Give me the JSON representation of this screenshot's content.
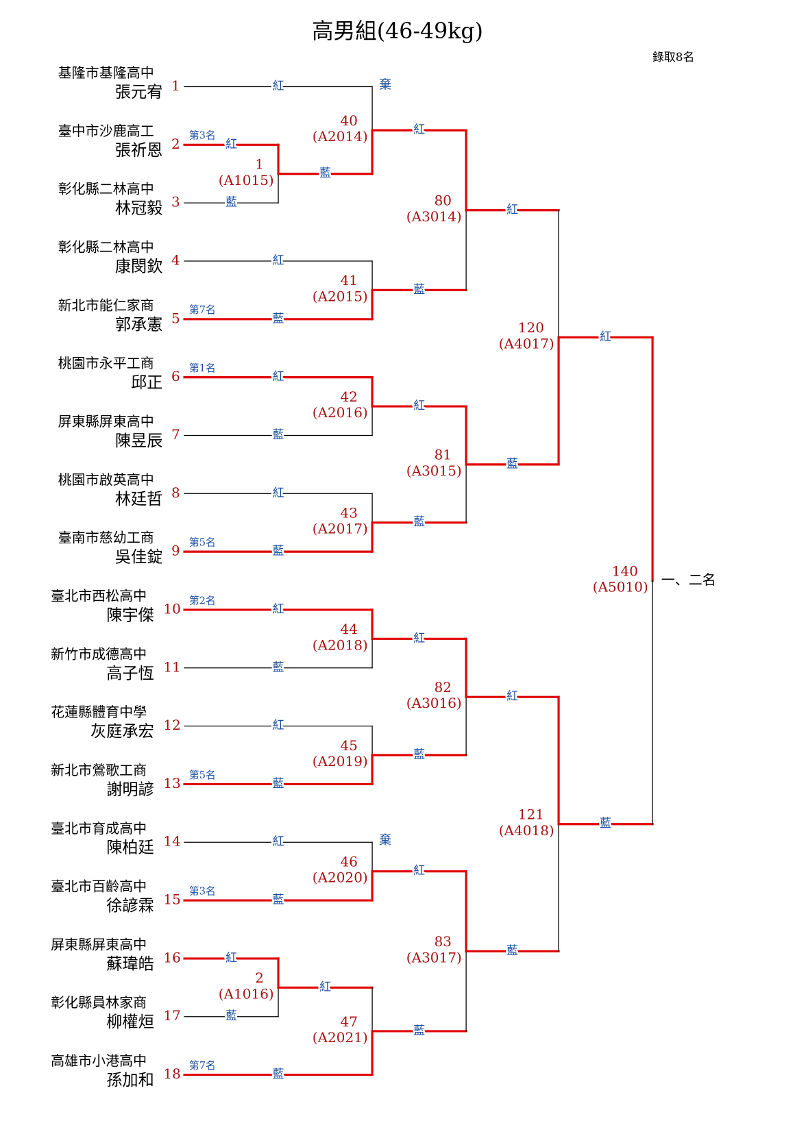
{
  "title": "高男組(46-49kg)",
  "note": "錄取8名",
  "final_label": "一、二名",
  "advance_color": "#e00000",
  "players": [
    {
      "seed": 1,
      "school": "基隆市基隆高中",
      "name": "張元宥",
      "line_color": "#000000"
    },
    {
      "seed": 2,
      "school": "臺中市沙鹿高工",
      "name": "張祈恩",
      "rank": "第3名",
      "line_color": "#e00000"
    },
    {
      "seed": 3,
      "school": "彰化縣二林高中",
      "name": "林冠毅",
      "line_color": "#000000"
    },
    {
      "seed": 4,
      "school": "彰化縣二林高中",
      "name": "康閔欽",
      "line_color": "#000000"
    },
    {
      "seed": 5,
      "school": "新北市能仁家商",
      "name": "郭承憲",
      "rank": "第7名",
      "line_color": "#e00000"
    },
    {
      "seed": 6,
      "school": "桃園市永平工商",
      "name": "邱正",
      "rank": "第1名",
      "line_color": "#e00000"
    },
    {
      "seed": 7,
      "school": "屏東縣屏東高中",
      "name": "陳昱辰",
      "line_color": "#000000"
    },
    {
      "seed": 8,
      "school": "桃園市啟英高中",
      "name": "林廷哲",
      "line_color": "#000000"
    },
    {
      "seed": 9,
      "school": "臺南市慈幼工商",
      "name": "吳佳錠",
      "rank": "第5名",
      "line_color": "#e00000"
    },
    {
      "seed": 10,
      "school": "臺北市西松高中",
      "name": "陳宇傑",
      "rank": "第2名",
      "line_color": "#e00000"
    },
    {
      "seed": 11,
      "school": "新竹市成德高中",
      "name": "高子恆",
      "line_color": "#000000"
    },
    {
      "seed": 12,
      "school": "花蓮縣體育中學",
      "name": "灰庭承宏",
      "line_color": "#000000"
    },
    {
      "seed": 13,
      "school": "新北市鶯歌工商",
      "name": "謝明諺",
      "rank": "第5名",
      "line_color": "#e00000"
    },
    {
      "seed": 14,
      "school": "臺北市育成高中",
      "name": "陳柏廷",
      "line_color": "#000000"
    },
    {
      "seed": 15,
      "school": "臺北市百齡高中",
      "name": "徐諺霖",
      "rank": "第3名",
      "line_color": "#e00000"
    },
    {
      "seed": 16,
      "school": "屏東縣屏東高中",
      "name": "蘇瑋皓",
      "line_color": "#e00000"
    },
    {
      "seed": 17,
      "school": "彰化縣員林家商",
      "name": "柳權烜",
      "line_color": "#000000"
    },
    {
      "seed": 18,
      "school": "高雄市小港高中",
      "name": "孫加和",
      "rank": "第7名",
      "line_color": "#e00000"
    }
  ],
  "matches": [
    {
      "number": 1,
      "code": "(A1015)",
      "top_label": "紅",
      "bottom_label": "藍",
      "top_color": "#e00000",
      "bottom_color": "#000000"
    },
    {
      "number": 2,
      "code": "(A1016)",
      "top_label": "紅",
      "bottom_label": "藍",
      "top_color": "#e00000",
      "bottom_color": "#000000"
    },
    {
      "number": 40,
      "code": "(A2014)",
      "top_label": "紅",
      "bottom_label": "藍",
      "top_note": "棄",
      "top_color": "#000000",
      "bottom_color": "#e00000"
    },
    {
      "number": 41,
      "code": "(A2015)",
      "top_label": "紅",
      "bottom_label": "藍",
      "top_color": "#000000",
      "bottom_color": "#e00000"
    },
    {
      "number": 42,
      "code": "(A2016)",
      "top_label": "紅",
      "bottom_label": "藍",
      "top_color": "#e00000",
      "bottom_color": "#000000"
    },
    {
      "number": 43,
      "code": "(A2017)",
      "top_label": "紅",
      "bottom_label": "藍",
      "top_color": "#000000",
      "bottom_color": "#e00000"
    },
    {
      "number": 44,
      "code": "(A2018)",
      "top_label": "紅",
      "bottom_label": "藍",
      "top_color": "#e00000",
      "bottom_color": "#000000"
    },
    {
      "number": 45,
      "code": "(A2019)",
      "top_label": "紅",
      "bottom_label": "藍",
      "top_color": "#000000",
      "bottom_color": "#e00000"
    },
    {
      "number": 46,
      "code": "(A2020)",
      "top_label": "紅",
      "bottom_label": "藍",
      "top_note": "棄",
      "top_color": "#000000",
      "bottom_color": "#e00000"
    },
    {
      "number": 47,
      "code": "(A2021)",
      "top_label": "紅",
      "bottom_label": "藍",
      "top_color": "#000000",
      "bottom_color": "#e00000"
    },
    {
      "number": 80,
      "code": "(A3014)",
      "top_label": "紅",
      "bottom_label": "藍",
      "top_color": "#e00000",
      "bottom_color": "#000000"
    },
    {
      "number": 81,
      "code": "(A3015)",
      "top_label": "紅",
      "bottom_label": "藍",
      "top_color": "#e00000",
      "bottom_color": "#000000"
    },
    {
      "number": 82,
      "code": "(A3016)",
      "top_label": "紅",
      "bottom_label": "藍",
      "top_color": "#e00000",
      "bottom_color": "#000000"
    },
    {
      "number": 83,
      "code": "(A3017)",
      "top_label": "紅",
      "bottom_label": "藍",
      "top_color": "#e00000",
      "bottom_color": "#000000"
    },
    {
      "number": 120,
      "code": "(A4017)",
      "top_label": "紅",
      "bottom_label": "藍",
      "top_color": "#000000",
      "bottom_color": "#e00000"
    },
    {
      "number": 121,
      "code": "(A4018)",
      "top_label": "紅",
      "bottom_label": "藍",
      "top_color": "#e00000",
      "bottom_color": "#000000"
    },
    {
      "number": 140,
      "code": "(A5010)",
      "top_label": "紅",
      "bottom_label": "藍",
      "top_color": "#e00000",
      "bottom_color": "#000000"
    }
  ]
}
